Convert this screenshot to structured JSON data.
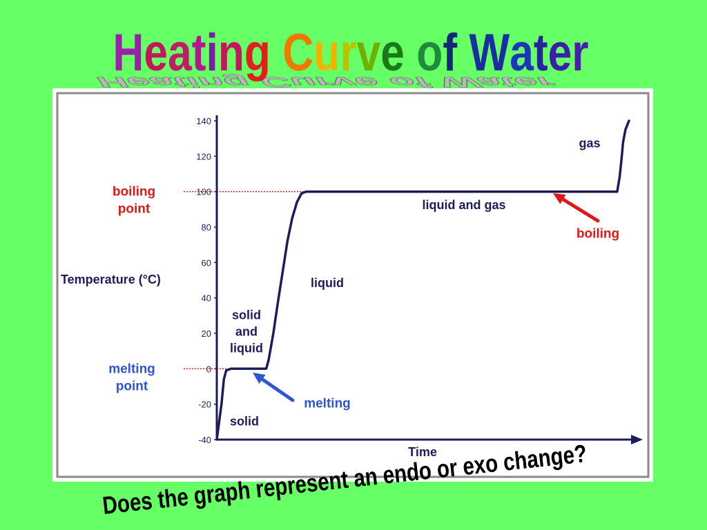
{
  "slide": {
    "title": "Heating Curve of Water",
    "title_colors": [
      "#9b1fa8",
      "#c2185b",
      "#c01c6a",
      "#b2188e",
      "#7a1fa2",
      "#c2185b",
      "#e0201c",
      "#ee7b00",
      "#f0b400",
      "#b9c400",
      "#6fb000",
      "#1a7a1a",
      "#1f8a3a",
      "#14287a",
      "#1a2ea0",
      "#1c36b8",
      "#25249e",
      "#3a1fa8",
      "#4a1fa8"
    ],
    "question": "Does the graph represent an endo or exo change?"
  },
  "chart_data": {
    "type": "line",
    "xlabel": "Time",
    "ylabel": "Temperature (°C)",
    "ylim": [
      -40,
      140
    ],
    "y_ticks": [
      "140",
      "120",
      "100",
      "80",
      "60",
      "40",
      "20",
      "0",
      "-20",
      "-40"
    ],
    "series": [
      {
        "points": [
          [
            0,
            -40
          ],
          [
            2,
            -20
          ],
          [
            3,
            -6
          ],
          [
            4,
            -1
          ],
          [
            6,
            0
          ],
          [
            21,
            0
          ],
          [
            22,
            5
          ],
          [
            24,
            20
          ],
          [
            26,
            38
          ],
          [
            28,
            55
          ],
          [
            30,
            72
          ],
          [
            32,
            85
          ],
          [
            34,
            94
          ],
          [
            36,
            99
          ],
          [
            38,
            100
          ],
          [
            170,
            100
          ],
          [
            171,
            108
          ],
          [
            171.8,
            118
          ],
          [
            172.5,
            128
          ],
          [
            173.5,
            135
          ],
          [
            175,
            140
          ]
        ]
      }
    ],
    "reference_lines": [
      {
        "label": "boiling point",
        "y": 100,
        "color": "#e01818"
      },
      {
        "label": "melting point",
        "y": 0,
        "color": "#e01818"
      }
    ],
    "region_labels": [
      "solid",
      "solid and liquid",
      "liquid",
      "liquid and gas",
      "gas"
    ],
    "annotations": [
      {
        "label": "melting",
        "color": "#2f55d4"
      },
      {
        "label": "boiling",
        "color": "#e01818"
      }
    ],
    "axis_colors": {
      "line": "#1c1c5c",
      "boiling_label": "#e01818",
      "melting_label": "#2f55d4"
    }
  }
}
